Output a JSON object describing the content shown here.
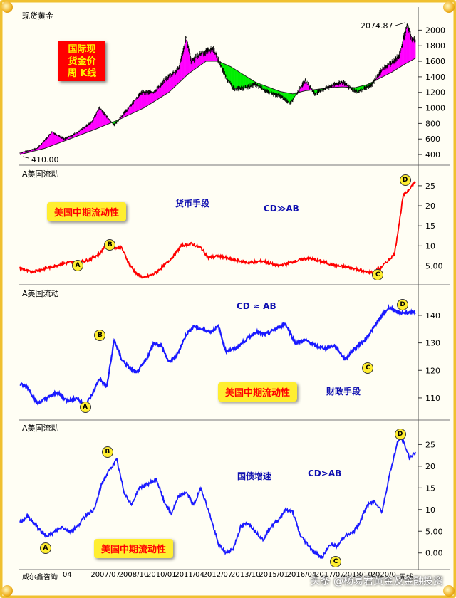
{
  "chart_data": [
    {
      "type": "candlestick-with-band",
      "title": "现货黄金",
      "badge_lines": [
        "国际现",
        "货金价",
        "周 K线"
      ],
      "y_ticks": [
        400,
        600,
        800,
        1000,
        1200,
        1400,
        1600,
        1800,
        2000
      ],
      "ylim": [
        300,
        2150
      ],
      "annotations": {
        "max_label": "2074.87",
        "min_label": "410.00"
      },
      "band_colors": {
        "up": "#ff00ff",
        "down": "#00ee00"
      },
      "price_points": [
        [
          2005.0,
          420
        ],
        [
          2005.7,
          480
        ],
        [
          2006.3,
          690
        ],
        [
          2006.8,
          600
        ],
        [
          2007.3,
          680
        ],
        [
          2007.9,
          820
        ],
        [
          2008.2,
          1000
        ],
        [
          2008.8,
          780
        ],
        [
          2009.2,
          930
        ],
        [
          2009.9,
          1200
        ],
        [
          2010.4,
          1200
        ],
        [
          2010.9,
          1380
        ],
        [
          2011.4,
          1500
        ],
        [
          2011.7,
          1900
        ],
        [
          2011.9,
          1600
        ],
        [
          2012.3,
          1700
        ],
        [
          2012.8,
          1760
        ],
        [
          2013.3,
          1400
        ],
        [
          2013.6,
          1250
        ],
        [
          2014.0,
          1250
        ],
        [
          2014.5,
          1300
        ],
        [
          2015.0,
          1200
        ],
        [
          2015.5,
          1150
        ],
        [
          2015.9,
          1060
        ],
        [
          2016.5,
          1350
        ],
        [
          2016.9,
          1180
        ],
        [
          2017.5,
          1280
        ],
        [
          2018.0,
          1330
        ],
        [
          2018.6,
          1200
        ],
        [
          2019.2,
          1300
        ],
        [
          2019.6,
          1500
        ],
        [
          2020.0,
          1580
        ],
        [
          2020.3,
          1680
        ],
        [
          2020.6,
          2060
        ],
        [
          2020.8,
          1900
        ],
        [
          2020.95,
          1870
        ]
      ],
      "band_points": [
        [
          2005.0,
          400
        ],
        [
          2006.0,
          480
        ],
        [
          2007.0,
          600
        ],
        [
          2008.0,
          720
        ],
        [
          2009.0,
          850
        ],
        [
          2010.0,
          1000
        ],
        [
          2011.0,
          1200
        ],
        [
          2011.8,
          1440
        ],
        [
          2012.5,
          1600
        ],
        [
          2013.0,
          1600
        ],
        [
          2013.5,
          1530
        ],
        [
          2014.0,
          1430
        ],
        [
          2014.5,
          1330
        ],
        [
          2015.0,
          1270
        ],
        [
          2015.5,
          1210
        ],
        [
          2016.0,
          1180
        ],
        [
          2016.5,
          1220
        ],
        [
          2017.0,
          1240
        ],
        [
          2017.5,
          1260
        ],
        [
          2018.0,
          1270
        ],
        [
          2018.5,
          1260
        ],
        [
          2019.0,
          1300
        ],
        [
          2019.5,
          1380
        ],
        [
          2020.0,
          1460
        ],
        [
          2020.5,
          1560
        ],
        [
          2020.95,
          1640
        ]
      ]
    },
    {
      "type": "line",
      "title": "A美国流动",
      "yellow_label": "美国中期流动性",
      "annotations": [
        "货币手段",
        "CD≫AB"
      ],
      "markers": [
        {
          "label": "A",
          "x": 2007.3,
          "y": 5.2
        },
        {
          "label": "B",
          "x": 2008.6,
          "y": 10.5
        },
        {
          "label": "C",
          "x": 2019.4,
          "y": 3.0
        },
        {
          "label": "D",
          "x": 2020.5,
          "y": 26.5
        }
      ],
      "y_ticks": [
        5,
        10,
        15,
        20,
        25
      ],
      "ylim": [
        1,
        28
      ],
      "color": "#ff0000",
      "points": [
        [
          2005.0,
          4.5
        ],
        [
          2005.4,
          3.5
        ],
        [
          2005.8,
          4.0
        ],
        [
          2006.3,
          4.8
        ],
        [
          2006.9,
          5.8
        ],
        [
          2007.4,
          6.0
        ],
        [
          2007.8,
          6.5
        ],
        [
          2008.2,
          8.0
        ],
        [
          2008.5,
          10.5
        ],
        [
          2008.8,
          9.5
        ],
        [
          2009.1,
          9.5
        ],
        [
          2009.4,
          5.5
        ],
        [
          2009.7,
          3.0
        ],
        [
          2010.0,
          2.0
        ],
        [
          2010.4,
          3.0
        ],
        [
          2010.8,
          5.0
        ],
        [
          2011.2,
          7.5
        ],
        [
          2011.5,
          10.0
        ],
        [
          2011.9,
          10.5
        ],
        [
          2012.3,
          9.5
        ],
        [
          2012.6,
          7.0
        ],
        [
          2013.0,
          7.5
        ],
        [
          2013.6,
          6.5
        ],
        [
          2014.2,
          5.8
        ],
        [
          2014.8,
          6.2
        ],
        [
          2015.4,
          5.0
        ],
        [
          2016.0,
          6.0
        ],
        [
          2016.6,
          7.0
        ],
        [
          2017.2,
          6.0
        ],
        [
          2017.8,
          5.0
        ],
        [
          2018.4,
          4.5
        ],
        [
          2018.9,
          3.5
        ],
        [
          2019.3,
          3.3
        ],
        [
          2019.8,
          6.0
        ],
        [
          2020.1,
          8.0
        ],
        [
          2020.3,
          16.0
        ],
        [
          2020.45,
          22.5
        ],
        [
          2020.6,
          23.5
        ],
        [
          2020.8,
          25.0
        ],
        [
          2020.95,
          26.0
        ]
      ]
    },
    {
      "type": "line",
      "title": "A美国流动",
      "yellow_label": "美国中期流动性",
      "annotations": [
        "CD ≈ AB",
        "财政手段"
      ],
      "markers": [
        {
          "label": "A",
          "x": 2007.6,
          "y": 107
        },
        {
          "label": "B",
          "x": 2008.2,
          "y": 133
        },
        {
          "label": "C",
          "x": 2019.0,
          "y": 121
        },
        {
          "label": "D",
          "x": 2020.4,
          "y": 144
        }
      ],
      "y_ticks": [
        110,
        120,
        130,
        140
      ],
      "ylim": [
        103,
        148
      ],
      "color": "#1a1aff",
      "points": [
        [
          2005.0,
          115
        ],
        [
          2005.3,
          114
        ],
        [
          2005.7,
          108
        ],
        [
          2006.1,
          110
        ],
        [
          2006.5,
          112
        ],
        [
          2006.9,
          109
        ],
        [
          2007.3,
          110
        ],
        [
          2007.6,
          107
        ],
        [
          2007.9,
          111
        ],
        [
          2008.2,
          117
        ],
        [
          2008.5,
          114
        ],
        [
          2008.8,
          131
        ],
        [
          2009.1,
          124
        ],
        [
          2009.4,
          121
        ],
        [
          2009.7,
          119
        ],
        [
          2010.1,
          124
        ],
        [
          2010.4,
          130
        ],
        [
          2010.7,
          129
        ],
        [
          2011.0,
          123
        ],
        [
          2011.3,
          125
        ],
        [
          2011.7,
          133
        ],
        [
          2012.0,
          136
        ],
        [
          2012.3,
          135
        ],
        [
          2012.7,
          134
        ],
        [
          2013.0,
          136
        ],
        [
          2013.3,
          127
        ],
        [
          2013.7,
          128
        ],
        [
          2014.1,
          131
        ],
        [
          2014.5,
          134
        ],
        [
          2014.9,
          133
        ],
        [
          2015.3,
          135
        ],
        [
          2015.7,
          137
        ],
        [
          2016.1,
          130
        ],
        [
          2016.5,
          131
        ],
        [
          2016.9,
          129
        ],
        [
          2017.3,
          128
        ],
        [
          2017.7,
          129
        ],
        [
          2018.1,
          124
        ],
        [
          2018.5,
          128
        ],
        [
          2018.9,
          131
        ],
        [
          2019.3,
          136
        ],
        [
          2019.6,
          140
        ],
        [
          2019.9,
          143
        ],
        [
          2020.2,
          141
        ],
        [
          2020.5,
          141
        ],
        [
          2020.95,
          141
        ]
      ]
    },
    {
      "type": "line",
      "title": "A美国流动",
      "yellow_label": "美国中期流动性",
      "annotations": [
        "国债增速",
        "CD>AB"
      ],
      "markers": [
        {
          "label": "A",
          "x": 2006.0,
          "y": 1.2
        },
        {
          "label": "B",
          "x": 2008.5,
          "y": 23.5
        },
        {
          "label": "C",
          "x": 2017.7,
          "y": -1.8
        },
        {
          "label": "D",
          "x": 2020.3,
          "y": 27.5
        }
      ],
      "y_ticks": [
        0,
        5,
        10,
        15,
        20,
        25
      ],
      "ylim": [
        -3,
        29
      ],
      "color": "#1a1aff",
      "points": [
        [
          2005.0,
          7.0
        ],
        [
          2005.3,
          8.5
        ],
        [
          2005.7,
          6.0
        ],
        [
          2006.0,
          4.0
        ],
        [
          2006.3,
          4.5
        ],
        [
          2006.7,
          6.0
        ],
        [
          2007.0,
          5.0
        ],
        [
          2007.3,
          6.0
        ],
        [
          2007.7,
          9.0
        ],
        [
          2008.0,
          10.0
        ],
        [
          2008.3,
          16.0
        ],
        [
          2008.6,
          19.0
        ],
        [
          2008.9,
          21.5
        ],
        [
          2009.2,
          14.0
        ],
        [
          2009.5,
          11.0
        ],
        [
          2009.8,
          15.0
        ],
        [
          2010.2,
          16.0
        ],
        [
          2010.5,
          17.0
        ],
        [
          2010.8,
          12.0
        ],
        [
          2011.1,
          9.0
        ],
        [
          2011.4,
          13.0
        ],
        [
          2011.7,
          14.0
        ],
        [
          2012.0,
          11.0
        ],
        [
          2012.3,
          15.0
        ],
        [
          2012.7,
          8.0
        ],
        [
          2013.0,
          2.0
        ],
        [
          2013.3,
          0.0
        ],
        [
          2013.6,
          1.0
        ],
        [
          2013.9,
          6.0
        ],
        [
          2014.2,
          7.0
        ],
        [
          2014.5,
          5.0
        ],
        [
          2014.8,
          3.0
        ],
        [
          2015.1,
          6.0
        ],
        [
          2015.4,
          7.5
        ],
        [
          2015.7,
          10.0
        ],
        [
          2016.0,
          9.5
        ],
        [
          2016.3,
          4.0
        ],
        [
          2016.6,
          2.0
        ],
        [
          2016.9,
          0.0
        ],
        [
          2017.2,
          -1.0
        ],
        [
          2017.5,
          2.0
        ],
        [
          2017.8,
          1.5
        ],
        [
          2018.1,
          4.0
        ],
        [
          2018.4,
          4.5
        ],
        [
          2018.7,
          7.0
        ],
        [
          2019.0,
          11.0
        ],
        [
          2019.3,
          12.0
        ],
        [
          2019.6,
          9.5
        ],
        [
          2019.9,
          18.0
        ],
        [
          2020.2,
          25.0
        ],
        [
          2020.35,
          27.0
        ],
        [
          2020.5,
          25.0
        ],
        [
          2020.7,
          22.0
        ],
        [
          2020.95,
          23.0
        ]
      ]
    }
  ],
  "x_axis": {
    "labels": [
      "04",
      "2007/07",
      "2008/10",
      "2010/01",
      "2011/04",
      "2012/07",
      "2013/10",
      "2015/01",
      "2016/04",
      "2017/07",
      "2018/10",
      "2020/0",
      "周线"
    ],
    "xlim": [
      2005.0,
      2021.0
    ]
  },
  "footer": {
    "source": "威尔鑫咨询",
    "watermark": "头条 @杨易君黄金及金融投资"
  }
}
